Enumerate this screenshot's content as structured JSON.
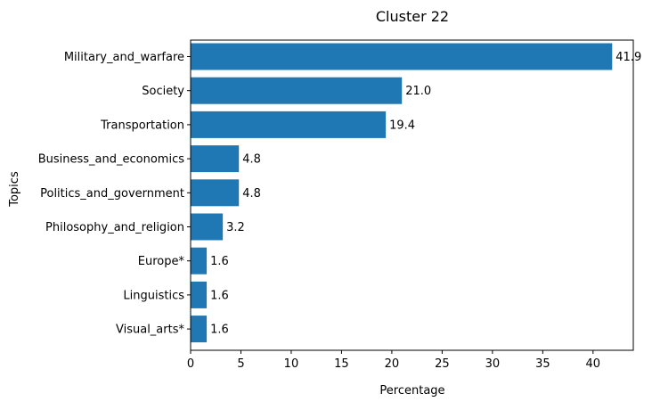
{
  "chart_data": {
    "type": "bar",
    "orientation": "horizontal",
    "title": "Cluster 22",
    "xlabel": "Percentage",
    "ylabel": "Topics",
    "categories": [
      "Military_and_warfare",
      "Society",
      "Transportation",
      "Business_and_economics",
      "Politics_and_government",
      "Philosophy_and_religion",
      "Europe*",
      "Linguistics",
      "Visual_arts*"
    ],
    "values": [
      41.9,
      21.0,
      19.4,
      4.8,
      4.8,
      3.2,
      1.6,
      1.6,
      1.6
    ],
    "value_labels": [
      "41.9",
      "21.0",
      "19.4",
      "4.8",
      "4.8",
      "3.2",
      "1.6",
      "1.6",
      "1.6"
    ],
    "xlim": [
      0,
      44
    ],
    "xticks": [
      0,
      5,
      10,
      15,
      20,
      25,
      30,
      35,
      40
    ],
    "xtick_labels": [
      "0",
      "5",
      "10",
      "15",
      "20",
      "25",
      "30",
      "35",
      "40"
    ],
    "grid": false,
    "legend": "none",
    "bar_color": "#1f77b4"
  }
}
